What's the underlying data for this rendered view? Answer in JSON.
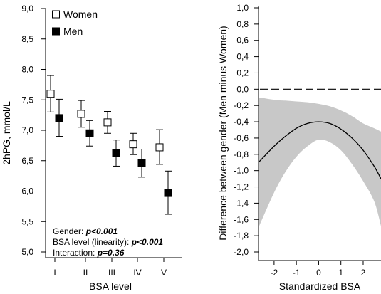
{
  "chart_data": [
    {
      "type": "scatter",
      "xlabel": "BSA level",
      "ylabel": "2hPG, mmol/L",
      "categories": [
        "I",
        "II",
        "III",
        "IV",
        "V"
      ],
      "ylim": [
        5.0,
        9.0
      ],
      "yticks": [
        "5,0",
        "5,5",
        "6,0",
        "6,5",
        "7,0",
        "7,5",
        "8,0",
        "8,5",
        "9,0"
      ],
      "legend_position": "top-left",
      "series": [
        {
          "name": "Women",
          "marker": "open-square",
          "values": [
            7.6,
            7.27,
            7.13,
            6.77,
            6.72
          ],
          "lower": [
            7.3,
            7.05,
            6.95,
            6.6,
            6.44
          ],
          "upper": [
            7.9,
            7.49,
            7.31,
            6.95,
            7.01
          ]
        },
        {
          "name": "Men",
          "marker": "filled-square",
          "values": [
            7.2,
            6.95,
            6.62,
            6.46,
            5.97
          ],
          "lower": [
            6.9,
            6.74,
            6.41,
            6.23,
            5.62
          ],
          "upper": [
            7.51,
            7.16,
            6.84,
            6.69,
            6.33
          ]
        }
      ],
      "annotations": [
        {
          "label": "Gender: ",
          "value": "p<0.001"
        },
        {
          "label": "BSA level (linearity): ",
          "value": "p<0.001"
        },
        {
          "label": "Interaction: ",
          "value": "p=0.36"
        }
      ]
    },
    {
      "type": "line",
      "xlabel": "Standardized BSA",
      "ylabel": "Difference between gender (Men minus Women)",
      "xlim": [
        -2.7,
        2.8
      ],
      "ylim": [
        -2.0,
        1.0
      ],
      "xticks": [
        -2,
        -1,
        0,
        1,
        2
      ],
      "xticklabels": [
        "-2",
        "-1",
        "0",
        "1",
        "2"
      ],
      "yticks": [
        "-2,0",
        "-1,8",
        "-1,6",
        "-1,4",
        "-1,2",
        "-1,0",
        "-0,8",
        "-0,6",
        "-0,4",
        "-0,2",
        "0,0",
        "0,2",
        "0,4",
        "0,6",
        "0,8",
        "1,0"
      ],
      "reference_line": 0.0,
      "x": [
        -2.7,
        -2.0,
        -1.5,
        -1.0,
        -0.5,
        0.0,
        0.5,
        1.0,
        1.5,
        2.0,
        2.5,
        2.8
      ],
      "estimate": [
        -0.9,
        -0.7,
        -0.58,
        -0.48,
        -0.42,
        -0.4,
        -0.42,
        -0.49,
        -0.6,
        -0.75,
        -0.95,
        -1.1
      ],
      "ci_upper": [
        -0.1,
        -0.13,
        -0.14,
        -0.15,
        -0.16,
        -0.18,
        -0.21,
        -0.26,
        -0.33,
        -0.42,
        -0.48,
        -0.52
      ],
      "ci_lower": [
        -1.7,
        -1.27,
        -1.02,
        -0.83,
        -0.7,
        -0.62,
        -0.65,
        -0.75,
        -0.92,
        -1.13,
        -1.38,
        -1.68
      ],
      "ci_color": "#c8c8c8"
    }
  ]
}
